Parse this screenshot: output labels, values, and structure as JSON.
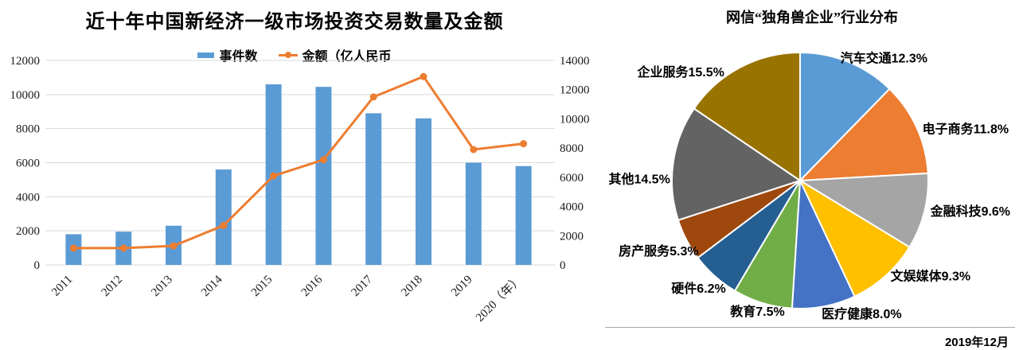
{
  "chart_data": [
    {
      "type": "bar-line-combo",
      "title": "近十年中国新经济一级市场投资交易数量及金额",
      "categories": [
        "2011",
        "2012",
        "2013",
        "2014",
        "2015",
        "2016",
        "2017",
        "2018",
        "2019",
        "2020（年）"
      ],
      "series": [
        {
          "name": "事件数",
          "type": "bar",
          "axis": "left",
          "color": "#5B9BD5",
          "values": [
            1800,
            1950,
            2300,
            5600,
            10600,
            10450,
            8900,
            8600,
            6000,
            5800
          ]
        },
        {
          "name": "金额（亿人民币",
          "type": "line",
          "axis": "right",
          "color": "#ED7D31",
          "values": [
            1150,
            1150,
            1300,
            2700,
            6100,
            7200,
            11500,
            12900,
            7900,
            8300
          ]
        }
      ],
      "left_axis": {
        "min": 0,
        "max": 12000,
        "step": 2000,
        "ticks": [
          "0",
          "2000",
          "4000",
          "6000",
          "8000",
          "10000",
          "12000"
        ]
      },
      "right_axis": {
        "min": 0,
        "max": 14000,
        "step": 2000,
        "ticks": [
          "0",
          "2000",
          "4000",
          "6000",
          "8000",
          "10000",
          "12000",
          "14000"
        ]
      },
      "grid": true,
      "legend_position": "top",
      "colors": {
        "grid": "#D9D9D9",
        "tick_text": "#1A1A1A"
      }
    },
    {
      "type": "pie",
      "title": "网信“独角兽企业”行业分布",
      "start_angle_deg": 0,
      "direction": "clockwise",
      "slices": [
        {
          "label": "汽车交通",
          "value": 12.3,
          "color": "#5B9BD5"
        },
        {
          "label": "电子商务",
          "value": 11.8,
          "color": "#ED7D31"
        },
        {
          "label": "金融科技",
          "value": 9.6,
          "color": "#A5A5A5"
        },
        {
          "label": "文娱媒体",
          "value": 9.3,
          "color": "#FFC000"
        },
        {
          "label": "医疗健康",
          "value": 8.0,
          "color": "#4472C4"
        },
        {
          "label": "教育",
          "value": 7.5,
          "color": "#70AD47"
        },
        {
          "label": "硬件",
          "value": 6.2,
          "color": "#255E91"
        },
        {
          "label": "房产服务",
          "value": 5.3,
          "color": "#9E480E"
        },
        {
          "label": "其他",
          "value": 14.5,
          "color": "#636363"
        },
        {
          "label": "企业服务",
          "value": 15.5,
          "color": "#997300"
        }
      ],
      "label_format": "{label}{value}%",
      "footnote": "2019年12月",
      "colors": {
        "slice_separator": "#FFFFFF",
        "footer_line": "#A6A6A6"
      }
    }
  ]
}
